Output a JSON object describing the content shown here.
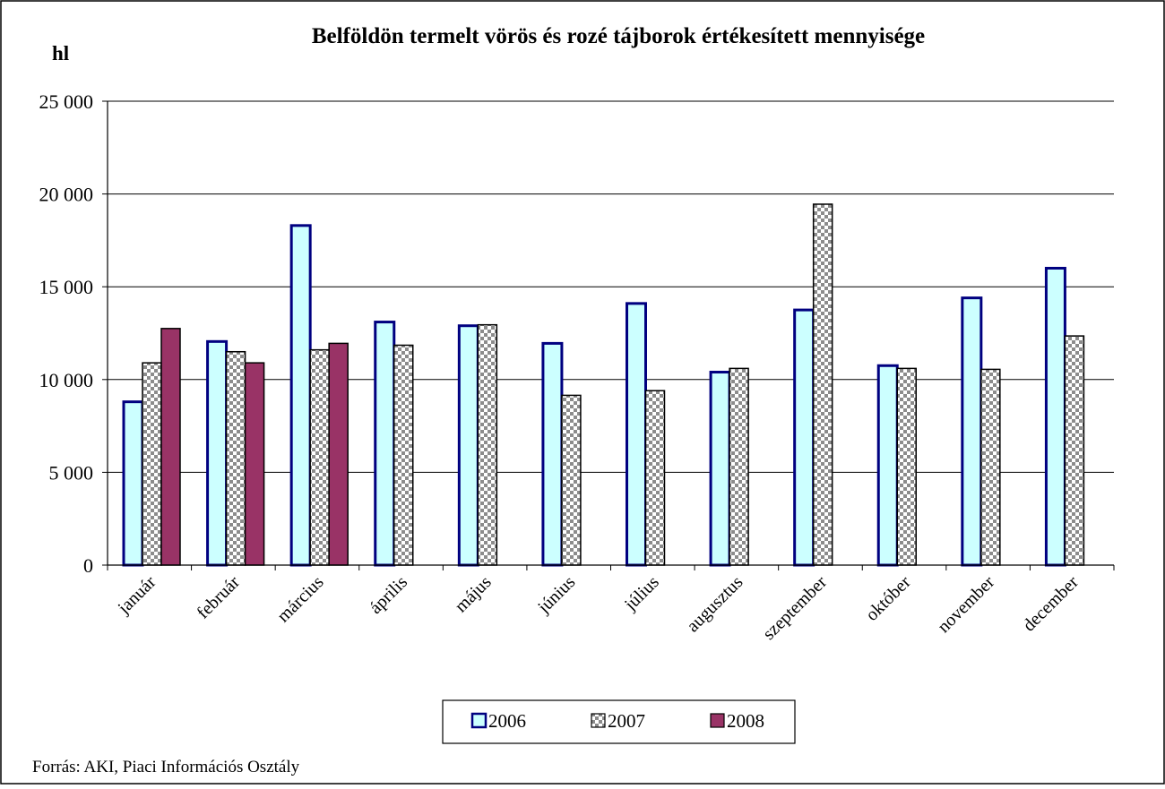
{
  "chart_data": {
    "type": "bar",
    "title": "Belföldön termelt vörös és rozé tájborok értékesített mennyisége",
    "ylabel": "hl",
    "xlabel": "",
    "ylim": [
      0,
      25000
    ],
    "y_ticks": [
      0,
      5000,
      10000,
      15000,
      20000,
      25000
    ],
    "y_tick_labels": [
      "0",
      "5 000",
      "10 000",
      "15 000",
      "20 000",
      "25 000"
    ],
    "grid": true,
    "legend_position": "bottom",
    "categories": [
      "január",
      "február",
      "március",
      "április",
      "május",
      "június",
      "július",
      "augusztus",
      "szeptember",
      "október",
      "november",
      "december"
    ],
    "series": [
      {
        "name": "2006",
        "color": "#ccffff",
        "border": "#000080",
        "pattern": "solid",
        "values": [
          8800,
          12050,
          18300,
          13100,
          12900,
          11950,
          14100,
          10400,
          13750,
          10750,
          14400,
          16000
        ]
      },
      {
        "name": "2007",
        "color": "#c0c0c0",
        "border": "#000000",
        "pattern": "checker",
        "values": [
          10900,
          11500,
          11600,
          11850,
          12950,
          9150,
          9400,
          10600,
          19450,
          10600,
          10550,
          12350
        ]
      },
      {
        "name": "2008",
        "color": "#993366",
        "border": "#000000",
        "pattern": "solid",
        "values": [
          12750,
          10900,
          11950,
          null,
          null,
          null,
          null,
          null,
          null,
          null,
          null,
          null
        ]
      }
    ],
    "source": "Forrás: AKI, Piaci Információs Osztály"
  }
}
